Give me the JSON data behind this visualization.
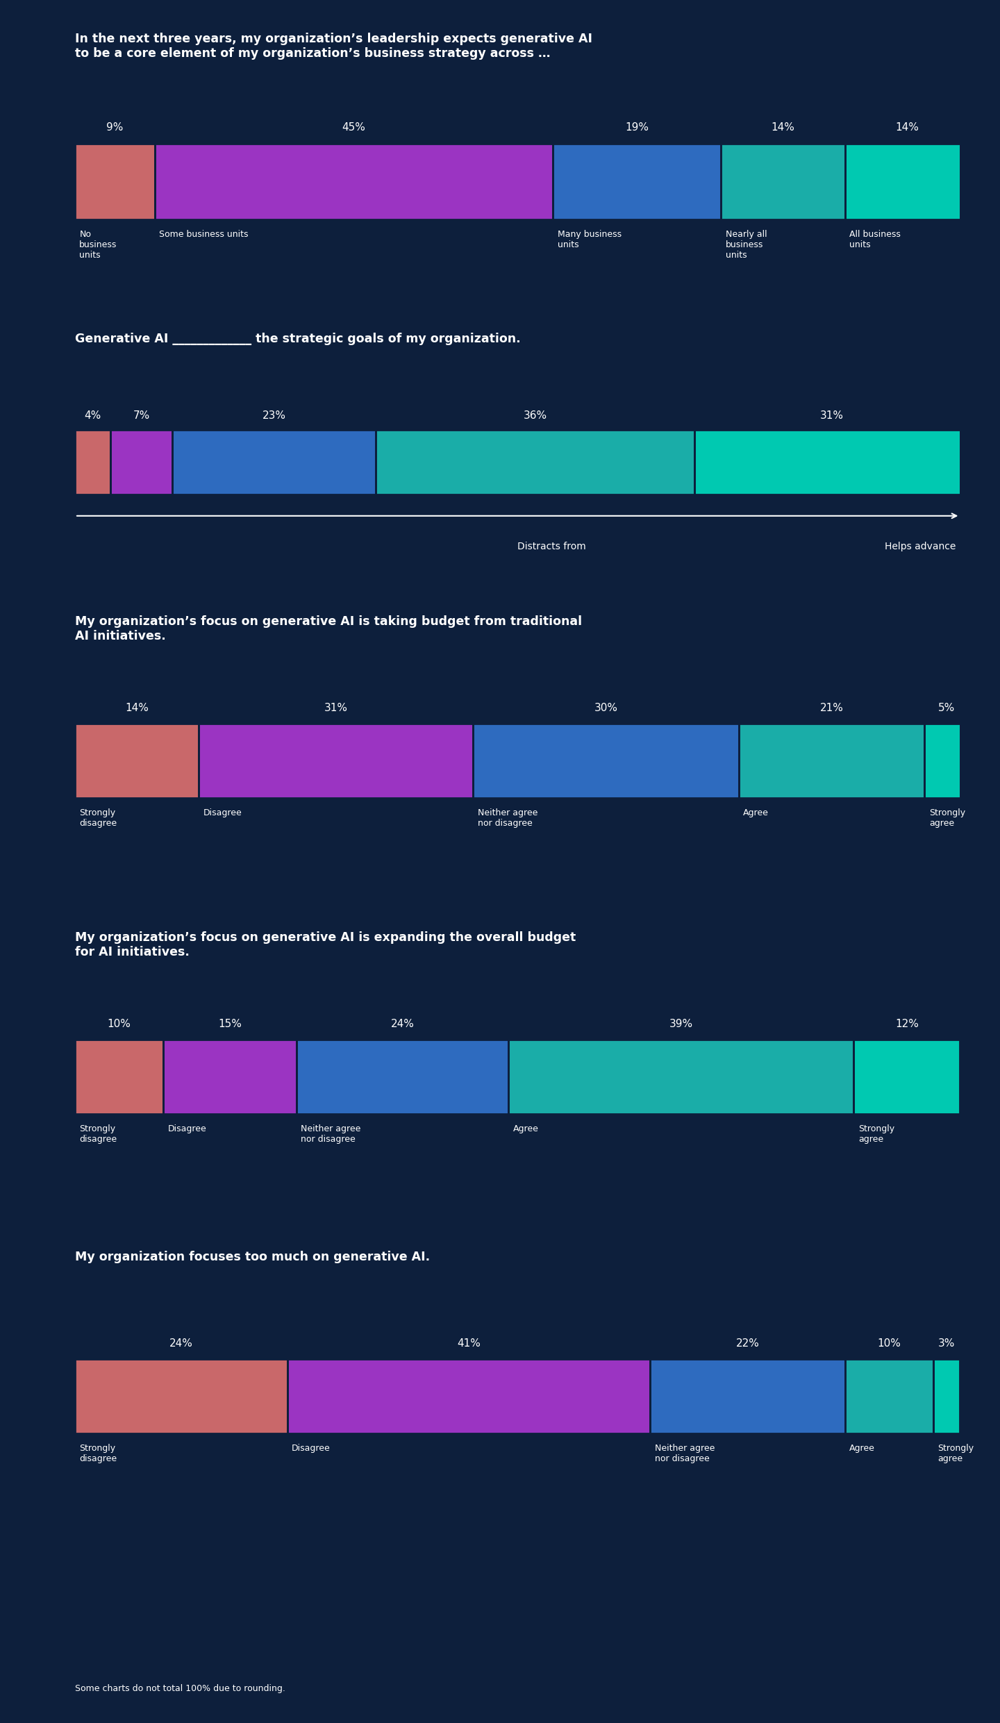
{
  "background_color": "#0d1f3c",
  "text_color": "#ffffff",
  "charts": [
    {
      "title": "In the next three years, my organization’s leadership expects generative AI\nto be a core element of my organization’s business strategy across …",
      "values": [
        9,
        45,
        19,
        14,
        14
      ],
      "labels": [
        "No\nbusiness\nunits",
        "Some business units",
        "Many business\nunits",
        "Nearly all\nbusiness\nunits",
        "All business\nunits"
      ],
      "colors": [
        "#c9686a",
        "#9b34c2",
        "#2e6bbf",
        "#1aada8",
        "#00c9b1"
      ],
      "show_arrow": false,
      "arrow_left": "",
      "arrow_right": ""
    },
    {
      "title": "Generative AI _____________ the strategic goals of my organization.",
      "values": [
        4,
        7,
        23,
        36,
        31
      ],
      "labels": [
        "",
        "",
        "",
        "",
        ""
      ],
      "colors": [
        "#c9686a",
        "#9b34c2",
        "#2e6bbf",
        "#1aada8",
        "#00c9b1"
      ],
      "show_arrow": true,
      "arrow_left": "Distracts from",
      "arrow_right": "Helps advance",
      "bottom_labels": [
        "Distracts from",
        "",
        "",
        "",
        "Helps advance"
      ]
    },
    {
      "title": "My organization’s focus on generative AI is taking budget from traditional\nAI initiatives.",
      "values": [
        14,
        31,
        30,
        21,
        5
      ],
      "labels": [
        "Strongly\ndisagree",
        "Disagree",
        "Neither agree\nnor disagree",
        "Agree",
        "Strongly\nagree"
      ],
      "colors": [
        "#c9686a",
        "#9b34c2",
        "#2e6bbf",
        "#1aada8",
        "#00c9b1"
      ],
      "show_arrow": false,
      "arrow_left": "",
      "arrow_right": ""
    },
    {
      "title": "My organization’s focus on generative AI is expanding the overall budget\nfor AI initiatives.",
      "values": [
        10,
        15,
        24,
        39,
        12
      ],
      "labels": [
        "Strongly\ndisagree",
        "Disagree",
        "Neither agree\nnor disagree",
        "Agree",
        "Strongly\nagree"
      ],
      "colors": [
        "#c9686a",
        "#9b34c2",
        "#2e6bbf",
        "#1aada8",
        "#00c9b1"
      ],
      "show_arrow": false,
      "arrow_left": "",
      "arrow_right": ""
    },
    {
      "title": "My organization focuses too much on generative AI.",
      "values": [
        24,
        41,
        22,
        10,
        3
      ],
      "labels": [
        "Strongly\ndisagree",
        "Disagree",
        "Neither agree\nnor disagree",
        "Agree",
        "Strongly\nagree"
      ],
      "colors": [
        "#c9686a",
        "#9b34c2",
        "#2e6bbf",
        "#1aada8",
        "#00c9b1"
      ],
      "show_arrow": false,
      "arrow_left": "",
      "arrow_right": ""
    }
  ],
  "footer": "Some charts do not total 100% due to rounding."
}
